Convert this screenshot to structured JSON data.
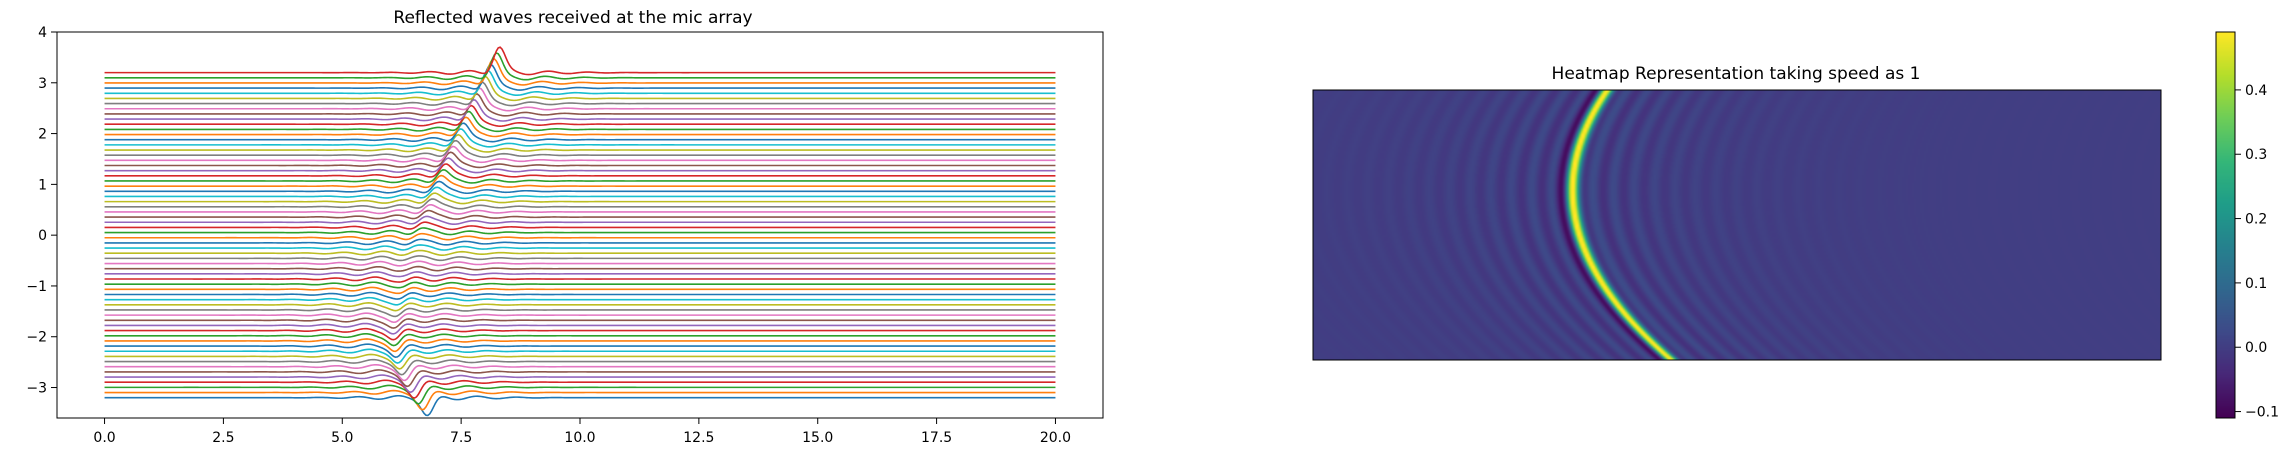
{
  "chart_data": [
    {
      "type": "line",
      "title": "Reflected waves received at the mic array",
      "xlabel": "",
      "ylabel": "",
      "xlim": [
        -1,
        21
      ],
      "ylim": [
        -3.6,
        4.0
      ],
      "x_ticks": [
        0.0,
        2.5,
        5.0,
        7.5,
        10.0,
        12.5,
        15.0,
        17.5,
        20.0
      ],
      "x_tick_labels": [
        "0.0",
        "2.5",
        "5.0",
        "7.5",
        "10.0",
        "12.5",
        "15.0",
        "17.5",
        "20.0"
      ],
      "y_ticks": [
        -3,
        -2,
        -1,
        0,
        1,
        2,
        3
      ],
      "y_tick_labels": [
        "−3",
        "−2",
        "−1",
        "0",
        "1",
        "2",
        "3"
      ],
      "grid": false,
      "legend": false,
      "traces": {
        "count": 64,
        "x_range": [
          0,
          20
        ],
        "offset_first": -3.2,
        "offset_last": 3.2,
        "pulse_center_first": 6.8,
        "pulse_center_min": 6.1,
        "pulse_center_last": 8.3,
        "pulse_amplitude_first": -0.35,
        "pulse_amplitude_last": 0.5,
        "colors": [
          "#1f77b4",
          "#ff7f0e",
          "#2ca02c",
          "#d62728",
          "#9467bd",
          "#8c564b",
          "#e377c2",
          "#7f7f7f",
          "#bcbd22",
          "#17becf"
        ]
      }
    },
    {
      "type": "heatmap",
      "title": "Heatmap Representation taking speed as 1",
      "xlabel": "",
      "ylabel": "",
      "colormap": "viridis",
      "colorbar": {
        "min": -0.11,
        "max": 0.49,
        "ticks": [
          0.4,
          0.3,
          0.2,
          0.1,
          0.0,
          -0.1
        ],
        "tick_labels": [
          "0.4",
          "0.3",
          "0.2",
          "0.1",
          "0.0",
          "−0.1"
        ]
      },
      "background_value": 0.0,
      "ridge_peak_value": 0.48,
      "ridge": {
        "description_points": [
          {
            "row_frac": 0.0,
            "col_frac": 0.345
          },
          {
            "row_frac": 0.35,
            "col_frac": 0.305
          },
          {
            "row_frac": 1.0,
            "col_frac": 0.42
          }
        ]
      }
    }
  ]
}
